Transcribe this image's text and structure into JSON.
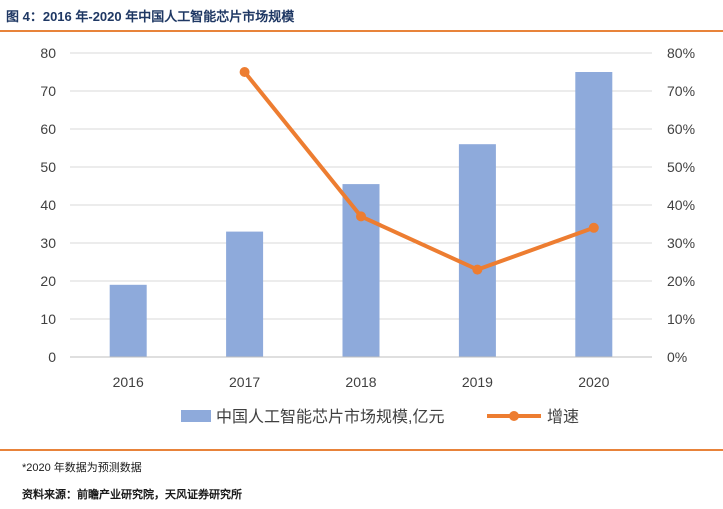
{
  "header": {
    "title": "图 4：2016 年-2020 年中国人工智能芯片市场规模"
  },
  "footer": {
    "note": "*2020 年数据为预测数据",
    "source": "资料来源：前瞻产业研究院，天风证券研究所"
  },
  "colors": {
    "bar": "#8eaadb",
    "line": "#ed7d31",
    "title": "#1f3864",
    "rule": "#e8833a"
  },
  "chart_data": {
    "type": "bar+line",
    "title": "图 4：2016 年-2020 年中国人工智能芯片市场规模",
    "categories": [
      "2016",
      "2017",
      "2018",
      "2019",
      "2020"
    ],
    "series": [
      {
        "name": "中国人工智能芯片市场规模,亿元",
        "type": "bar",
        "axis": "left",
        "values": [
          19,
          33,
          45.5,
          56,
          75
        ]
      },
      {
        "name": "增速",
        "type": "line",
        "axis": "right",
        "values": [
          null,
          0.75,
          0.37,
          0.23,
          0.34
        ]
      }
    ],
    "y_left": {
      "ylim": [
        0,
        80
      ],
      "ticks": [
        "0",
        "10",
        "20",
        "30",
        "40",
        "50",
        "60",
        "70",
        "80"
      ]
    },
    "y_right": {
      "ylim": [
        0,
        0.8
      ],
      "ticks": [
        "0%",
        "10%",
        "20%",
        "30%",
        "40%",
        "50%",
        "60%",
        "70%",
        "80%"
      ]
    },
    "grid": true,
    "legend": "bottom"
  }
}
